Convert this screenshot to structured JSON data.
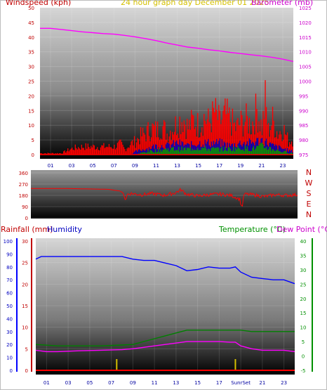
{
  "header": {
    "windspeed_label": "Windspeed (kph)",
    "graph_title": "24 hour graph day   December 01 2025",
    "barometer_label": "Barometer (mb)",
    "rainfall_label": "Rainfall (mm)",
    "humidity_label": "Humidity",
    "temperature_label": "Temperature (°C)",
    "dewpoint_label": "Dew Point (°C)"
  },
  "colors": {
    "wind": "#ff0000",
    "gust_bar": "#ff0000",
    "avg_wind": "#0000c0",
    "low_wind": "#00a000",
    "barometer": "#ff00ff",
    "direction": "#ff0000",
    "humidity": "#0000ff",
    "temperature": "#008000",
    "dewpoint": "#ff00ff",
    "rain": "#ff0000",
    "sun_marker": "#d4c000",
    "axis_red": "#c00000",
    "axis_magenta": "#cc00cc",
    "axis_green": "#009000",
    "axis_blue": "#0000c0"
  },
  "chart_data": [
    {
      "type": "line",
      "title": "24 hour graph day   December 01 2025",
      "x": {
        "tick_labels": [
          "01",
          "03",
          "05",
          "07",
          "09",
          "11",
          "13",
          "15",
          "17",
          "19",
          "21",
          "23"
        ],
        "range": [
          0,
          24
        ]
      },
      "left_axis": {
        "label": "Windspeed (kph)",
        "ylim": [
          0,
          50
        ],
        "ticks": [
          "0",
          "5",
          "10",
          "15",
          "20",
          "25",
          "30",
          "35",
          "40",
          "45",
          "50"
        ]
      },
      "right_axis": {
        "label": "Barometer (mb)",
        "ylim": [
          975,
          1025
        ],
        "ticks": [
          "975",
          "980",
          "985",
          "990",
          "995",
          "1000",
          "1005",
          "1010",
          "1015",
          "1020",
          "1025"
        ]
      },
      "series": [
        {
          "name": "Barometer (mb)",
          "axis": "right",
          "points": [
            [
              0,
              1018
            ],
            [
              1,
              1018
            ],
            [
              2,
              1017.6
            ],
            [
              3,
              1017.2
            ],
            [
              4,
              1016.8
            ],
            [
              5,
              1016.5
            ],
            [
              6,
              1016.2
            ],
            [
              7,
              1016
            ],
            [
              8,
              1015.6
            ],
            [
              9,
              1015.1
            ],
            [
              10,
              1014.5
            ],
            [
              11,
              1013.8
            ],
            [
              12,
              1013.0
            ],
            [
              13,
              1012.3
            ],
            [
              14,
              1011.6
            ],
            [
              15,
              1011.2
            ],
            [
              16,
              1010.7
            ],
            [
              17,
              1010.3
            ],
            [
              18,
              1009.8
            ],
            [
              19,
              1009.4
            ],
            [
              20,
              1009.0
            ],
            [
              21,
              1008.6
            ],
            [
              22,
              1008.1
            ],
            [
              23,
              1007.5
            ],
            [
              24,
              1006.7
            ]
          ]
        },
        {
          "name": "Wind gust (kph)",
          "axis": "left",
          "points": [
            [
              0,
              0.5
            ],
            [
              2,
              0.5
            ],
            [
              2.8,
              2
            ],
            [
              3.2,
              2.5
            ],
            [
              4,
              3
            ],
            [
              5,
              3
            ],
            [
              6,
              3
            ],
            [
              7,
              3
            ],
            [
              7.6,
              4
            ],
            [
              8,
              2
            ],
            [
              8.5,
              4
            ],
            [
              9,
              5
            ],
            [
              9.5,
              7
            ],
            [
              10,
              8
            ],
            [
              10.5,
              10
            ],
            [
              11,
              9
            ],
            [
              11.5,
              11
            ],
            [
              12,
              8
            ],
            [
              12.5,
              10
            ],
            [
              13,
              12
            ],
            [
              13.5,
              14
            ],
            [
              14,
              10
            ],
            [
              14.5,
              13
            ],
            [
              15,
              11
            ],
            [
              15.5,
              14
            ],
            [
              16,
              12
            ],
            [
              16.5,
              16
            ],
            [
              17,
              12
            ],
            [
              17.5,
              15
            ],
            [
              18,
              13
            ],
            [
              18.5,
              10
            ],
            [
              19,
              12
            ],
            [
              19.5,
              13
            ],
            [
              20,
              11
            ],
            [
              20.5,
              17
            ],
            [
              21,
              10
            ],
            [
              21.3,
              20
            ],
            [
              21.6,
              9
            ],
            [
              22,
              13
            ],
            [
              22.5,
              8
            ],
            [
              23,
              10
            ],
            [
              23.5,
              5
            ],
            [
              24,
              6
            ]
          ]
        },
        {
          "name": "Average wind (kph)",
          "axis": "left",
          "points": [
            [
              0,
              0
            ],
            [
              8.5,
              0
            ],
            [
              9,
              1
            ],
            [
              10,
              2
            ],
            [
              11,
              3
            ],
            [
              12,
              3
            ],
            [
              13,
              4
            ],
            [
              14,
              3
            ],
            [
              15,
              4
            ],
            [
              16,
              4
            ],
            [
              17,
              4
            ],
            [
              18,
              3
            ],
            [
              19,
              4
            ],
            [
              20,
              4
            ],
            [
              21,
              5
            ],
            [
              22,
              3
            ],
            [
              23,
              2
            ],
            [
              24,
              1
            ]
          ]
        },
        {
          "name": "Low wind (kph)",
          "axis": "left",
          "points": [
            [
              0,
              0
            ],
            [
              9,
              0
            ],
            [
              10,
              1
            ],
            [
              11,
              1.5
            ],
            [
              12,
              2
            ],
            [
              13,
              2
            ],
            [
              14,
              2
            ],
            [
              15,
              2.5
            ],
            [
              16,
              2
            ],
            [
              17,
              2
            ],
            [
              18,
              2
            ],
            [
              19,
              2.5
            ],
            [
              20,
              2
            ],
            [
              21,
              3
            ],
            [
              22,
              2
            ],
            [
              23,
              1
            ],
            [
              24,
              0.5
            ]
          ]
        }
      ]
    },
    {
      "type": "line",
      "x": {
        "range": [
          0,
          24
        ]
      },
      "left_axis": {
        "ylim": [
          0,
          360
        ],
        "ticks": [
          "0",
          "90",
          "180",
          "270",
          "360"
        ]
      },
      "right_axis": {
        "ticks": [
          "N",
          "E",
          "S",
          "W",
          "N"
        ]
      },
      "series": [
        {
          "name": "Wind direction (deg)",
          "points": [
            [
              0,
              235
            ],
            [
              3,
              235
            ],
            [
              6,
              230
            ],
            [
              7,
              228
            ],
            [
              8,
              215
            ],
            [
              8.3,
              200
            ],
            [
              8.5,
              140
            ],
            [
              8.7,
              190
            ],
            [
              9,
              195
            ],
            [
              10,
              185
            ],
            [
              11,
              195
            ],
            [
              12,
              180
            ],
            [
              13,
              200
            ],
            [
              13.5,
              225
            ],
            [
              14,
              190
            ],
            [
              15,
              175
            ],
            [
              16,
              185
            ],
            [
              17,
              190
            ],
            [
              18,
              180
            ],
            [
              18.8,
              150
            ],
            [
              19,
              80
            ],
            [
              19.2,
              190
            ],
            [
              20,
              185
            ],
            [
              21,
              170
            ],
            [
              22,
              185
            ],
            [
              23,
              180
            ],
            [
              24,
              185
            ]
          ]
        }
      ]
    },
    {
      "type": "line",
      "x": {
        "tick_labels": [
          "01",
          "03",
          "05",
          "07",
          "09",
          "11",
          "13",
          "15",
          "17",
          "SunrSet",
          "21",
          "23"
        ],
        "range": [
          0,
          24
        ]
      },
      "axes": {
        "humidity": {
          "label": "Humidity",
          "ylim": [
            0,
            100
          ],
          "ticks": [
            "0",
            "10",
            "20",
            "30",
            "40",
            "50",
            "60",
            "70",
            "80",
            "90",
            "100"
          ]
        },
        "rainfall": {
          "label": "Rainfall (mm)",
          "ylim": [
            0,
            30
          ],
          "ticks": [
            "0",
            "5",
            "10",
            "15",
            "20",
            "25",
            "30"
          ]
        },
        "temperature": {
          "label": "Temperature (°C)",
          "ylim": [
            -5,
            40
          ],
          "ticks": [
            "-5",
            "0",
            "5",
            "10",
            "15",
            "20",
            "25",
            "30",
            "35",
            "40"
          ]
        }
      },
      "series": [
        {
          "name": "Humidity",
          "axis": "humidity",
          "points": [
            [
              0,
              86
            ],
            [
              0.5,
              88
            ],
            [
              1,
              88
            ],
            [
              4,
              88
            ],
            [
              6,
              88
            ],
            [
              8,
              88
            ],
            [
              9,
              86
            ],
            [
              10,
              85
            ],
            [
              11,
              85
            ],
            [
              12,
              83
            ],
            [
              13,
              81
            ],
            [
              14,
              77
            ],
            [
              15,
              78
            ],
            [
              16,
              80
            ],
            [
              17,
              79
            ],
            [
              18,
              79
            ],
            [
              18.5,
              80
            ],
            [
              19,
              76
            ],
            [
              20,
              72
            ],
            [
              21,
              71
            ],
            [
              22,
              70
            ],
            [
              23,
              70
            ],
            [
              24,
              67
            ]
          ]
        },
        {
          "name": "Temperature (°C)",
          "axis": "temperature",
          "points": [
            [
              0,
              4
            ],
            [
              2,
              3.5
            ],
            [
              4,
              3.5
            ],
            [
              6,
              3.5
            ],
            [
              8,
              3.8
            ],
            [
              9,
              4
            ],
            [
              10,
              5
            ],
            [
              11,
              6
            ],
            [
              12,
              7
            ],
            [
              13,
              8
            ],
            [
              14,
              9
            ],
            [
              15,
              9
            ],
            [
              16,
              9
            ],
            [
              17,
              9
            ],
            [
              18,
              9
            ],
            [
              19,
              9
            ],
            [
              20,
              8.5
            ],
            [
              21,
              8.5
            ],
            [
              22,
              8.5
            ],
            [
              23,
              8.5
            ],
            [
              24,
              8.5
            ]
          ]
        },
        {
          "name": "Dew Point (°C)",
          "axis": "temperature",
          "points": [
            [
              0,
              2
            ],
            [
              1,
              1.5
            ],
            [
              2,
              1.5
            ],
            [
              4,
              1.8
            ],
            [
              6,
              2
            ],
            [
              8,
              2.2
            ],
            [
              9,
              2.5
            ],
            [
              10,
              3
            ],
            [
              11,
              3.5
            ],
            [
              12,
              4
            ],
            [
              13,
              4.5
            ],
            [
              14,
              5
            ],
            [
              15,
              5
            ],
            [
              16,
              5
            ],
            [
              17,
              5
            ],
            [
              18,
              4.8
            ],
            [
              18.5,
              4.8
            ],
            [
              19,
              3.5
            ],
            [
              20,
              2.5
            ],
            [
              21,
              2
            ],
            [
              22,
              2
            ],
            [
              23,
              2
            ],
            [
              24,
              1.5
            ]
          ]
        },
        {
          "name": "Rainfall (mm)",
          "axis": "rainfall",
          "points": [
            [
              0,
              0
            ],
            [
              24,
              0
            ]
          ]
        }
      ]
    }
  ]
}
